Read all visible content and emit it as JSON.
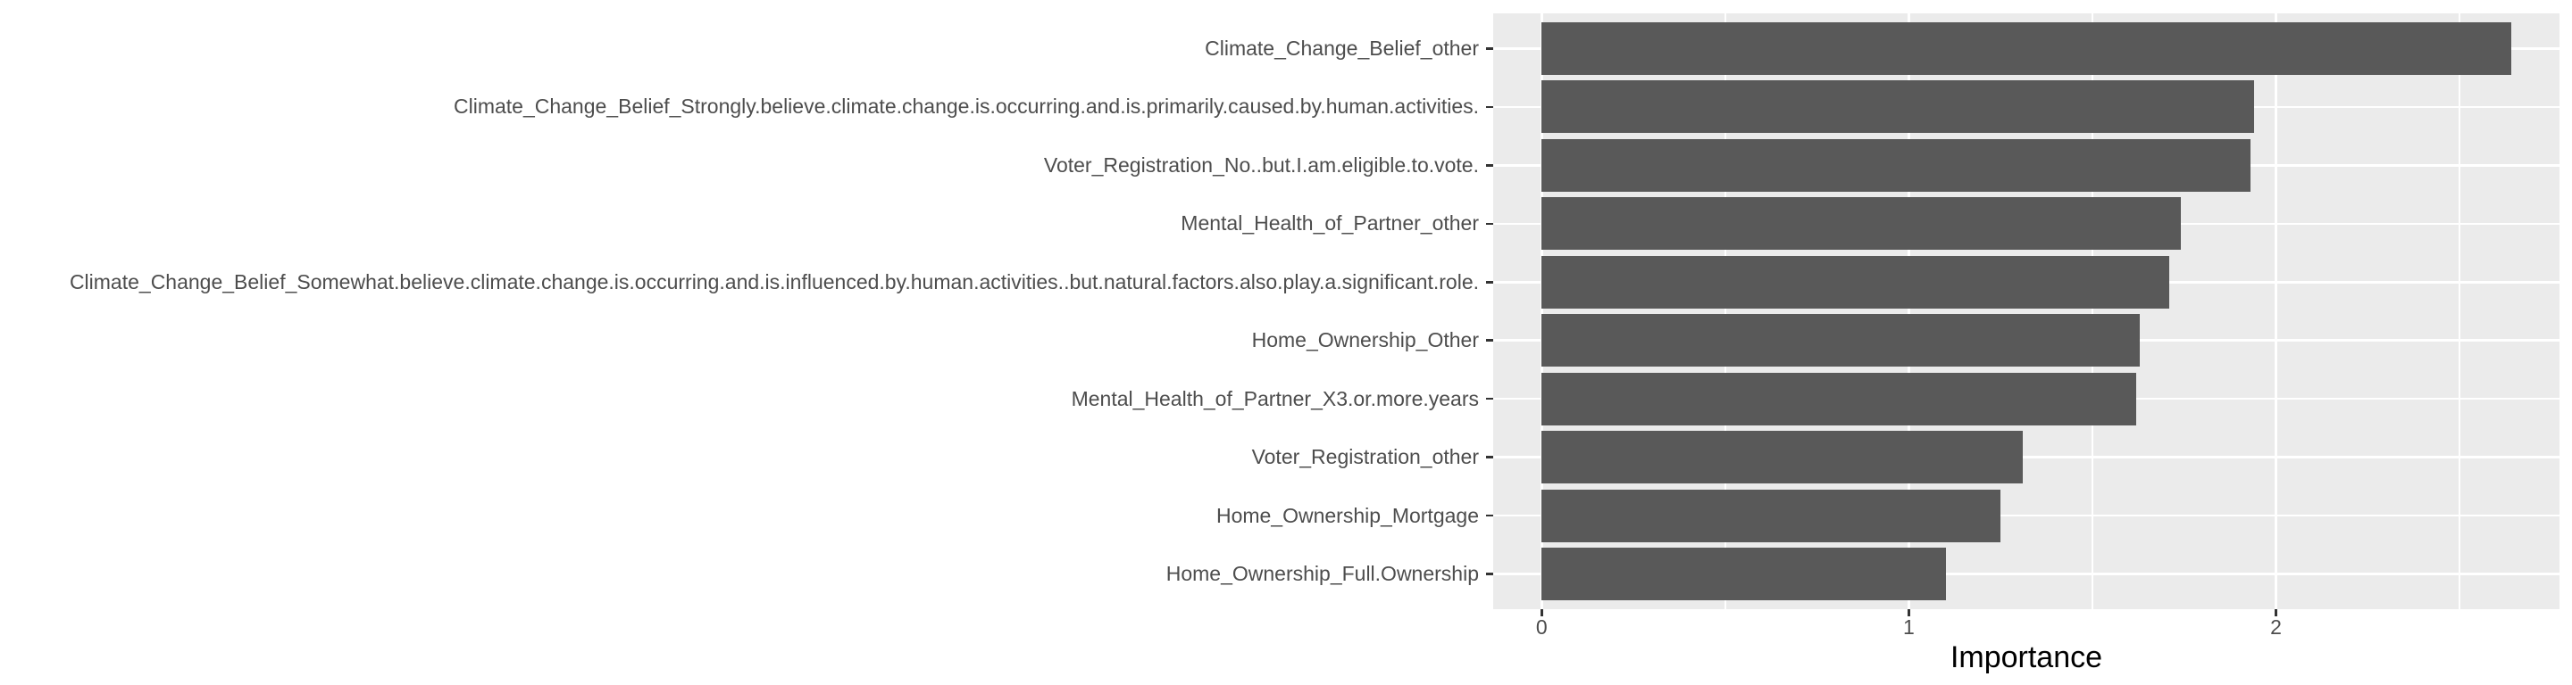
{
  "chart_data": {
    "type": "bar",
    "orientation": "horizontal",
    "title": "",
    "xlabel": "Importance",
    "ylabel": "",
    "categories": [
      "Climate_Change_Belief_other",
      "Climate_Change_Belief_Strongly.believe.climate.change.is.occurring.and.is.primarily.caused.by.human.activities.",
      "Voter_Registration_No..but.I.am.eligible.to.vote.",
      "Mental_Health_of_Partner_other",
      "Climate_Change_Belief_Somewhat.believe.climate.change.is.occurring.and.is.influenced.by.human.activities..but.natural.factors.also.play.a.significant.role.",
      "Home_Ownership_Other",
      "Mental_Health_of_Partner_X3.or.more.years",
      "Voter_Registration_other",
      "Home_Ownership_Mortgage",
      "Home_Ownership_Full.Ownership"
    ],
    "values": [
      2.64,
      1.94,
      1.93,
      1.74,
      1.71,
      1.63,
      1.62,
      1.31,
      1.25,
      1.1
    ],
    "x_ticks": [
      0,
      1,
      2
    ],
    "x_minor_ticks": [
      0.5,
      1.5,
      2.5
    ],
    "xlim": [
      -0.132,
      2.772
    ],
    "bar_width_fraction": 0.9,
    "band_expansion": 0.6,
    "legend": "none",
    "grid": "white major x/y + minor x on gray panel",
    "colors": {
      "bar_fill": "#595959",
      "panel_background": "#EBEBEB",
      "gridline": "#FFFFFF",
      "axis_text": "#4D4D4D",
      "axis_title": "#000000",
      "tick_mark": "#333333",
      "figure_background": "#FFFFFF"
    }
  }
}
